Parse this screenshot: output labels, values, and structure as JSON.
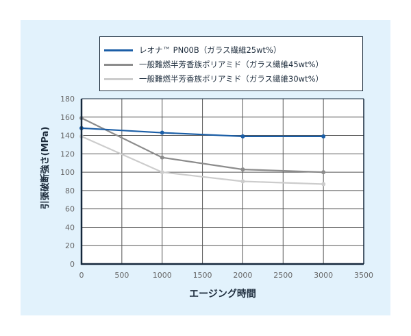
{
  "chart_data": {
    "type": "line",
    "title": "",
    "xlabel": "エージング時間",
    "ylabel": "引張破断強さ(MPa)",
    "xlim": [
      0,
      3500
    ],
    "ylim": [
      0,
      180
    ],
    "xticks": [
      0,
      500,
      1000,
      1500,
      2000,
      2500,
      3000,
      3500
    ],
    "yticks": [
      0,
      20,
      40,
      60,
      80,
      100,
      120,
      140,
      160,
      180
    ],
    "grid": true,
    "legend_position": "top",
    "x": [
      0,
      1000,
      2000,
      3000
    ],
    "series": [
      {
        "name": "レオナ™ PN00B（ガラス繊維25wt%）",
        "color": "#1b5ea6",
        "values": [
          148,
          143,
          139,
          139
        ]
      },
      {
        "name": "一般難燃半芳香族ポリアミド（ガラス繊維45wt%）",
        "color": "#8c8c8c",
        "values": [
          159,
          116,
          103,
          100
        ]
      },
      {
        "name": "一般難燃半芳香族ポリアミド（ガラス繊維30wt%）",
        "color": "#cccccc",
        "values": [
          139,
          100,
          90,
          87
        ]
      }
    ]
  },
  "legend": {
    "items": [
      {
        "label": "レオナ™ PN00B（ガラス繊維25wt%）",
        "color": "#1b5ea6"
      },
      {
        "label": "一般難燃半芳香族ポリアミド（ガラス繊維45wt%）",
        "color": "#8c8c8c"
      },
      {
        "label": "一般難燃半芳香族ポリアミド（ガラス繊維30wt%）",
        "color": "#cccccc"
      }
    ]
  },
  "axes": {
    "xlabel": "エージング時間",
    "ylabel": "引張破断強さ(MPa)"
  },
  "colors": {
    "panel_bg": "#e2f2fc",
    "axis": "#13263a",
    "grid": "#555555"
  }
}
